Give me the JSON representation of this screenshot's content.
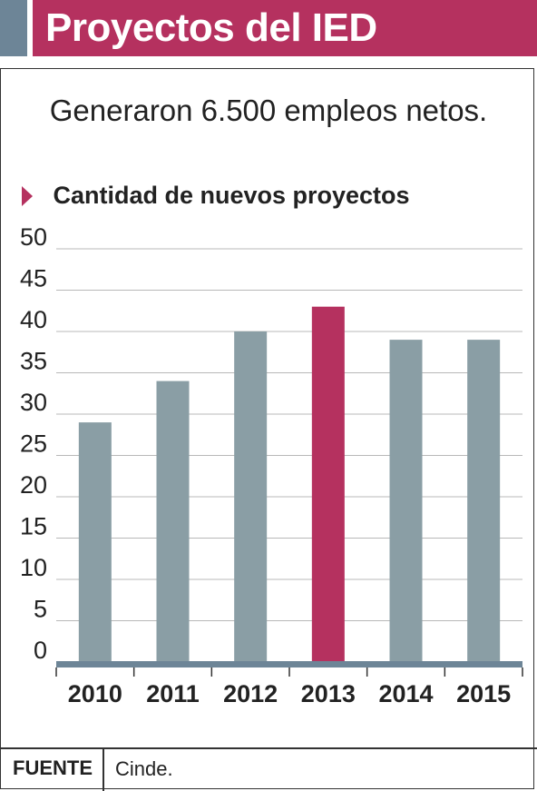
{
  "header": {
    "title": "Proyectos del IED"
  },
  "subtitle": "Generaron 6.500 empleos netos.",
  "source": {
    "label": "FUENTE",
    "value": "Cinde."
  },
  "colors": {
    "accent": "#b5315f",
    "bar": "#8a9ea5",
    "axis": "#6d8597"
  },
  "chart_data": {
    "type": "bar",
    "title": "Cantidad de nuevos proyectos",
    "categories": [
      "2010",
      "2011",
      "2012",
      "2013",
      "2014",
      "2015"
    ],
    "values": [
      29,
      34,
      40,
      43,
      39,
      39
    ],
    "highlight": "2013",
    "ylim": [
      0,
      50
    ],
    "yticks": [
      0,
      5,
      10,
      15,
      20,
      25,
      30,
      35,
      40,
      45,
      50
    ],
    "grid": true,
    "xlabel": "",
    "ylabel": ""
  }
}
